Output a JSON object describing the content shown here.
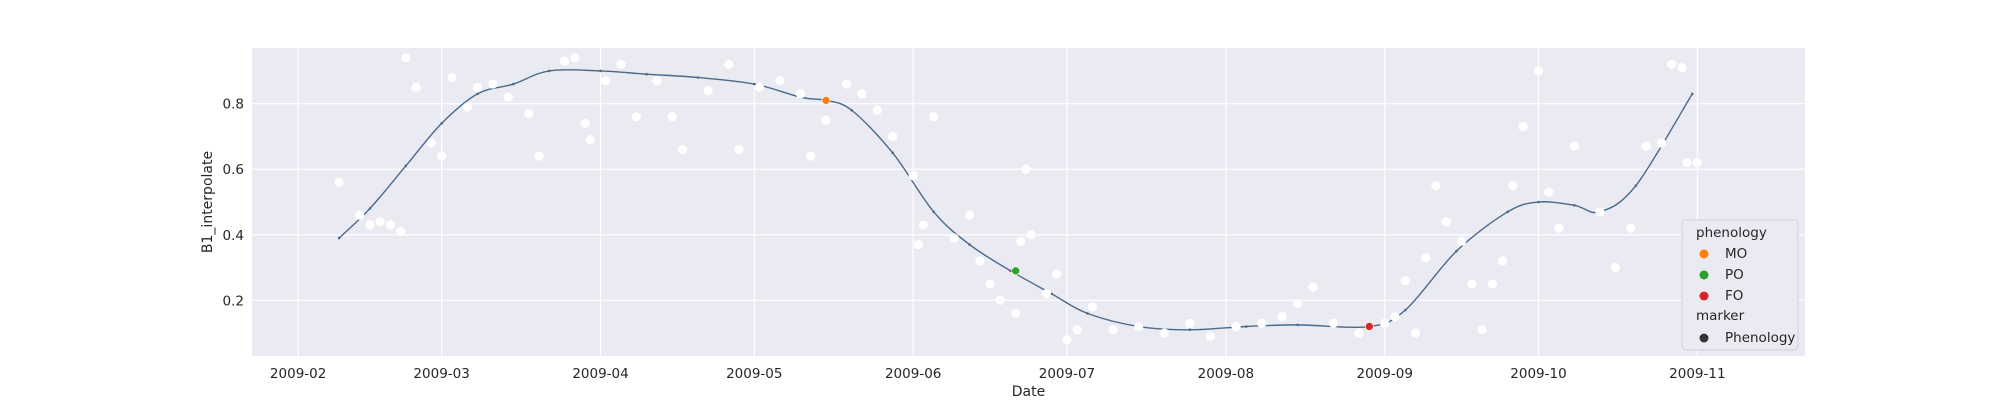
{
  "chart_data": {
    "type": "scatter",
    "xlabel": "Date",
    "ylabel": "B1_interpolate",
    "x_ticks": [
      "2009-02",
      "2009-03",
      "2009-04",
      "2009-05",
      "2009-06",
      "2009-07",
      "2009-08",
      "2009-09",
      "2009-10",
      "2009-11"
    ],
    "y_ticks": [
      "0.2",
      "0.4",
      "0.6",
      "0.8"
    ],
    "xlim": [
      "2009-01-23",
      "2009-11-22"
    ],
    "ylim": [
      0.03,
      0.97
    ],
    "grid": true,
    "background": "#eaeaf2",
    "legend": {
      "position": "lower-right",
      "title": "phenology",
      "entries": [
        {
          "label": "MO",
          "color": "#ff7f0e"
        },
        {
          "label": "PO",
          "color": "#2ca02c"
        },
        {
          "label": "FO",
          "color": "#d62728"
        }
      ],
      "marker_title": "marker",
      "marker_entries": [
        {
          "label": "Phenology",
          "color": "#333333"
        }
      ]
    },
    "curve": {
      "color": "#4a6a8a",
      "points": [
        [
          "2009-02-09",
          0.39
        ],
        [
          "2009-02-15",
          0.48
        ],
        [
          "2009-02-22",
          0.61
        ],
        [
          "2009-03-01",
          0.74
        ],
        [
          "2009-03-08",
          0.83
        ],
        [
          "2009-03-15",
          0.86
        ],
        [
          "2009-03-22",
          0.9
        ],
        [
          "2009-04-01",
          0.9
        ],
        [
          "2009-04-10",
          0.89
        ],
        [
          "2009-04-20",
          0.88
        ],
        [
          "2009-05-01",
          0.86
        ],
        [
          "2009-05-10",
          0.82
        ],
        [
          "2009-05-15",
          0.81
        ],
        [
          "2009-05-20",
          0.78
        ],
        [
          "2009-05-28",
          0.65
        ],
        [
          "2009-06-05",
          0.47
        ],
        [
          "2009-06-12",
          0.37
        ],
        [
          "2009-06-20",
          0.29
        ],
        [
          "2009-06-28",
          0.22
        ],
        [
          "2009-07-05",
          0.16
        ],
        [
          "2009-07-15",
          0.12
        ],
        [
          "2009-07-25",
          0.11
        ],
        [
          "2009-08-05",
          0.12
        ],
        [
          "2009-08-15",
          0.125
        ],
        [
          "2009-08-29",
          0.12
        ],
        [
          "2009-09-05",
          0.17
        ],
        [
          "2009-09-15",
          0.35
        ],
        [
          "2009-09-25",
          0.47
        ],
        [
          "2009-10-01",
          0.5
        ],
        [
          "2009-10-08",
          0.49
        ],
        [
          "2009-10-13",
          0.47
        ],
        [
          "2009-10-20",
          0.55
        ],
        [
          "2009-10-31",
          0.83
        ]
      ]
    },
    "scatter": {
      "color": "#ffffff",
      "points": [
        [
          "2009-02-09",
          0.56
        ],
        [
          "2009-02-13",
          0.46
        ],
        [
          "2009-02-15",
          0.43
        ],
        [
          "2009-02-17",
          0.44
        ],
        [
          "2009-02-19",
          0.43
        ],
        [
          "2009-02-21",
          0.41
        ],
        [
          "2009-02-22",
          0.94
        ],
        [
          "2009-02-24",
          0.85
        ],
        [
          "2009-02-27",
          0.68
        ],
        [
          "2009-03-01",
          0.64
        ],
        [
          "2009-03-03",
          0.88
        ],
        [
          "2009-03-06",
          0.79
        ],
        [
          "2009-03-08",
          0.85
        ],
        [
          "2009-03-11",
          0.86
        ],
        [
          "2009-03-14",
          0.82
        ],
        [
          "2009-03-18",
          0.77
        ],
        [
          "2009-03-20",
          0.64
        ],
        [
          "2009-03-25",
          0.93
        ],
        [
          "2009-03-27",
          0.94
        ],
        [
          "2009-03-29",
          0.74
        ],
        [
          "2009-03-30",
          0.69
        ],
        [
          "2009-04-02",
          0.87
        ],
        [
          "2009-04-05",
          0.92
        ],
        [
          "2009-04-08",
          0.76
        ],
        [
          "2009-04-12",
          0.87
        ],
        [
          "2009-04-15",
          0.76
        ],
        [
          "2009-04-17",
          0.66
        ],
        [
          "2009-04-22",
          0.84
        ],
        [
          "2009-04-26",
          0.92
        ],
        [
          "2009-04-28",
          0.66
        ],
        [
          "2009-05-02",
          0.85
        ],
        [
          "2009-05-06",
          0.87
        ],
        [
          "2009-05-10",
          0.83
        ],
        [
          "2009-05-12",
          0.64
        ],
        [
          "2009-05-15",
          0.75
        ],
        [
          "2009-05-19",
          0.86
        ],
        [
          "2009-05-22",
          0.83
        ],
        [
          "2009-05-25",
          0.78
        ],
        [
          "2009-05-28",
          0.7
        ],
        [
          "2009-06-01",
          0.58
        ],
        [
          "2009-06-02",
          0.37
        ],
        [
          "2009-06-03",
          0.43
        ],
        [
          "2009-06-05",
          0.76
        ],
        [
          "2009-06-09",
          0.39
        ],
        [
          "2009-06-12",
          0.46
        ],
        [
          "2009-06-14",
          0.32
        ],
        [
          "2009-06-16",
          0.25
        ],
        [
          "2009-06-18",
          0.2
        ],
        [
          "2009-06-21",
          0.16
        ],
        [
          "2009-06-22",
          0.38
        ],
        [
          "2009-06-23",
          0.6
        ],
        [
          "2009-06-24",
          0.4
        ],
        [
          "2009-06-27",
          0.22
        ],
        [
          "2009-06-29",
          0.28
        ],
        [
          "2009-07-01",
          0.08
        ],
        [
          "2009-07-03",
          0.11
        ],
        [
          "2009-07-06",
          0.18
        ],
        [
          "2009-07-10",
          0.11
        ],
        [
          "2009-07-15",
          0.12
        ],
        [
          "2009-07-20",
          0.1
        ],
        [
          "2009-07-25",
          0.13
        ],
        [
          "2009-07-29",
          0.09
        ],
        [
          "2009-08-03",
          0.12
        ],
        [
          "2009-08-08",
          0.13
        ],
        [
          "2009-08-12",
          0.15
        ],
        [
          "2009-08-15",
          0.19
        ],
        [
          "2009-08-18",
          0.24
        ],
        [
          "2009-08-22",
          0.13
        ],
        [
          "2009-08-27",
          0.1
        ],
        [
          "2009-09-01",
          0.13
        ],
        [
          "2009-09-03",
          0.15
        ],
        [
          "2009-09-05",
          0.26
        ],
        [
          "2009-09-07",
          0.1
        ],
        [
          "2009-09-09",
          0.33
        ],
        [
          "2009-09-11",
          0.55
        ],
        [
          "2009-09-13",
          0.44
        ],
        [
          "2009-09-16",
          0.38
        ],
        [
          "2009-09-18",
          0.25
        ],
        [
          "2009-09-20",
          0.11
        ],
        [
          "2009-09-22",
          0.25
        ],
        [
          "2009-09-24",
          0.32
        ],
        [
          "2009-09-26",
          0.55
        ],
        [
          "2009-09-28",
          0.73
        ],
        [
          "2009-10-01",
          0.9
        ],
        [
          "2009-10-03",
          0.53
        ],
        [
          "2009-10-05",
          0.42
        ],
        [
          "2009-10-08",
          0.67
        ],
        [
          "2009-10-13",
          0.47
        ],
        [
          "2009-10-16",
          0.3
        ],
        [
          "2009-10-19",
          0.42
        ],
        [
          "2009-10-22",
          0.67
        ],
        [
          "2009-10-25",
          0.68
        ],
        [
          "2009-10-27",
          0.92
        ],
        [
          "2009-10-29",
          0.91
        ],
        [
          "2009-10-30",
          0.62
        ],
        [
          "2009-11-01",
          0.62
        ]
      ]
    },
    "phenology_points": [
      {
        "label": "MO",
        "date": "2009-05-15",
        "value": 0.81,
        "color": "#ff7f0e"
      },
      {
        "label": "PO",
        "date": "2009-06-21",
        "value": 0.29,
        "color": "#2ca02c"
      },
      {
        "label": "FO",
        "date": "2009-08-29",
        "value": 0.12,
        "color": "#d62728"
      }
    ]
  }
}
